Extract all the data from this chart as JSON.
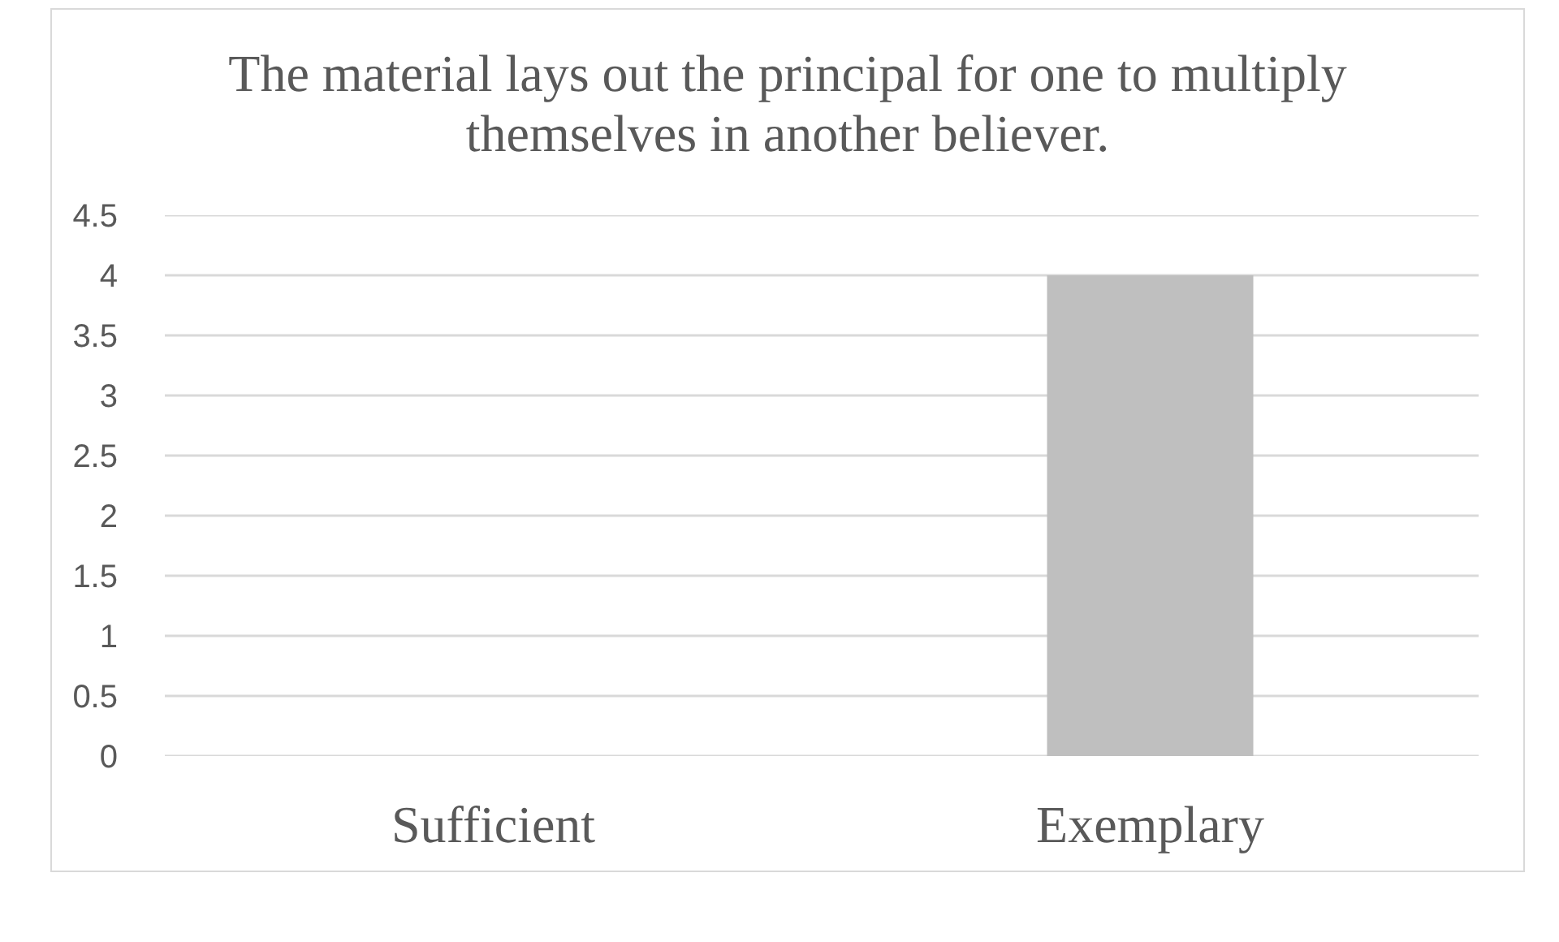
{
  "chart_data": {
    "type": "bar",
    "title": "The material lays out the principal for one to multiply themselves in another believer.",
    "categories": [
      "Sufficient",
      "Exemplary"
    ],
    "values": [
      0,
      4
    ],
    "color": "#bfbfbf",
    "ylim": [
      0,
      4.5
    ],
    "yticks": [
      0,
      0.5,
      1,
      1.5,
      2,
      2.5,
      3,
      3.5,
      4,
      4.5
    ],
    "grid": "y"
  }
}
